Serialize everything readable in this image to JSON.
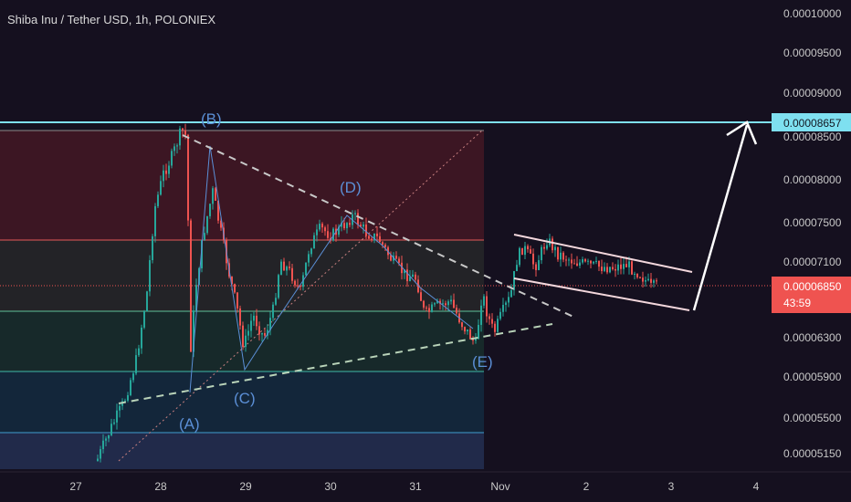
{
  "header": {
    "title": "Shiba Inu / Tether USD, 1h, POLONIEX"
  },
  "price_axis": {
    "ticks": [
      "0.00010000",
      "0.00009500",
      "0.00009000",
      "0.00008500",
      "0.00008000",
      "0.00007500",
      "0.00007100",
      "0.00006850",
      "0.00006300",
      "0.00005900",
      "0.00005500",
      "0.00005150"
    ],
    "level_label": "0.00008657",
    "last_price_label": "0.00006850",
    "countdown": "43:59"
  },
  "time_axis": {
    "ticks": [
      "27",
      "28",
      "29",
      "30",
      "31",
      "Nov",
      "2",
      "3",
      "4"
    ]
  },
  "wave_labels": {
    "A": "(A)",
    "B": "(B)",
    "C": "(C)",
    "D": "(D)",
    "E": "(E)"
  },
  "colors": {
    "background": "#15101f",
    "up_candle": "#26a69a",
    "down_candle": "#ef5350",
    "level_line": "#7ee0f0",
    "wave_label": "#5b8fd6",
    "trendline": "#c8c8c8",
    "channel": "#f3d7dc"
  },
  "chart_data": {
    "type": "candlestick",
    "title": "Shiba Inu / Tether USD, 1h, POLONIEX",
    "symbol": "SHIB/USDT",
    "interval": "1h",
    "exchange": "POLONIEX",
    "x": [
      "27",
      "28",
      "29",
      "30",
      "31",
      "Nov",
      "2",
      "3",
      "4"
    ],
    "y_ticks": [
      0.0001,
      9.5e-05,
      9e-05,
      8.5e-05,
      8e-05,
      7.5e-05,
      7.1e-05,
      6.3e-05,
      5.9e-05,
      5.5e-05,
      5.15e-05
    ],
    "horizontal_level": 8.657e-05,
    "last_price": 6.85e-05,
    "wave_points": [
      {
        "label": "(A)",
        "day": 28.35,
        "price": 5.75e-05
      },
      {
        "label": "(B)",
        "day": 28.3,
        "price": 8.68e-05
      },
      {
        "label": "(C)",
        "day": 28.95,
        "price": 5.95e-05
      },
      {
        "label": "(D)",
        "day": 30.25,
        "price": 7.75e-05
      },
      {
        "label": "(E)",
        "day": 31.8,
        "price": 6.15e-05
      }
    ],
    "projection_target": 8.657e-05,
    "grid": false,
    "legend": "none"
  }
}
